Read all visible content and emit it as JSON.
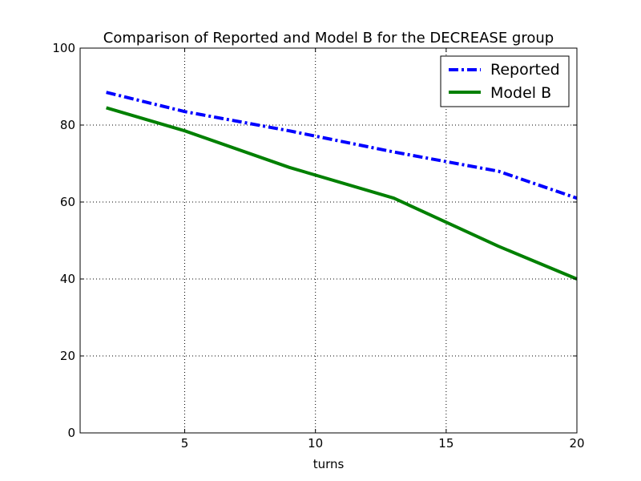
{
  "chart_data": {
    "type": "line",
    "title": "Comparison of Reported and Model B for the DECREASE group",
    "xlabel": "turns",
    "ylabel": "",
    "xlim": [
      1,
      20
    ],
    "ylim": [
      0,
      100
    ],
    "xticks": [
      5,
      10,
      15,
      20
    ],
    "yticks": [
      0,
      20,
      40,
      60,
      80,
      100
    ],
    "grid": true,
    "legend_position": "top-right",
    "series": [
      {
        "name": "Reported",
        "color": "#0000ff",
        "style": "dashdot",
        "x": [
          2,
          5,
          9,
          13,
          17,
          20
        ],
        "y": [
          88.5,
          83.5,
          78.5,
          73.0,
          68.0,
          61.0
        ]
      },
      {
        "name": "Model B",
        "color": "#008000",
        "style": "solid",
        "x": [
          2,
          5,
          9,
          13,
          17,
          20
        ],
        "y": [
          84.5,
          78.5,
          69.0,
          61.0,
          48.5,
          40.0
        ]
      }
    ]
  }
}
